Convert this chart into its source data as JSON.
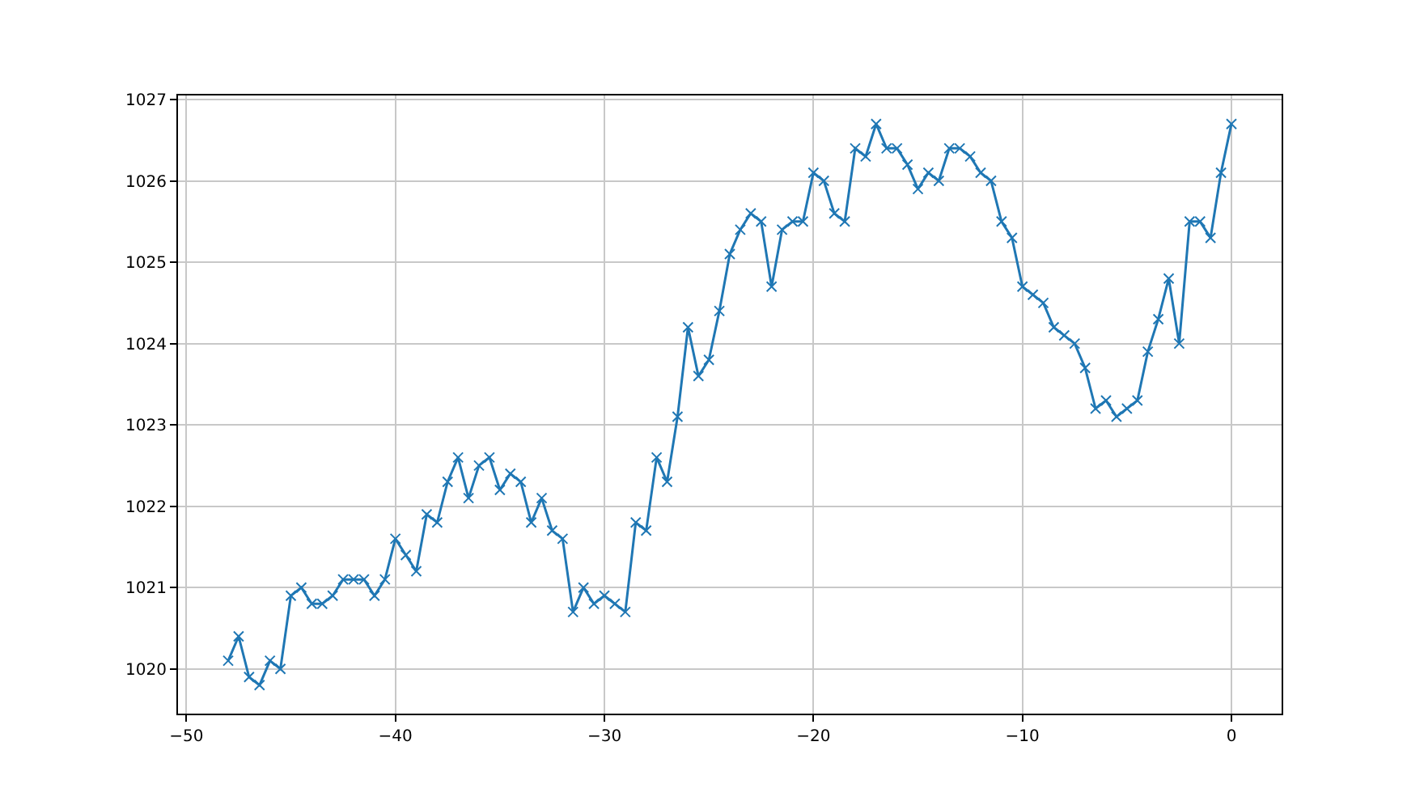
{
  "chart_data": {
    "type": "line",
    "x": [
      -48,
      -47.5,
      -47,
      -46.5,
      -46,
      -45.5,
      -45,
      -44.5,
      -44,
      -43.5,
      -43,
      -42.5,
      -42,
      -41.5,
      -41,
      -40.5,
      -40,
      -39.5,
      -39,
      -38.5,
      -38,
      -37.5,
      -37,
      -36.5,
      -36,
      -35.5,
      -35,
      -34.5,
      -34,
      -33.5,
      -33,
      -32.5,
      -32,
      -31.5,
      -31,
      -30.5,
      -30,
      -29.5,
      -29,
      -28.5,
      -28,
      -27.5,
      -27,
      -26.5,
      -26,
      -25.5,
      -25,
      -24.5,
      -24,
      -23.5,
      -23,
      -22.5,
      -22,
      -21.5,
      -21,
      -20.5,
      -20,
      -19.5,
      -19,
      -18.5,
      -18,
      -17.5,
      -17,
      -16.5,
      -16,
      -15.5,
      -15,
      -14.5,
      -14,
      -13.5,
      -13,
      -12.5,
      -12,
      -11.5,
      -11,
      -10.5,
      -10,
      -9.5,
      -9,
      -8.5,
      -8,
      -7.5,
      -7,
      -6.5,
      -6,
      -5.5,
      -5,
      -4.5,
      -4,
      -3.5,
      -3,
      -2.5,
      -2,
      -1.5,
      -1,
      -0.5,
      0
    ],
    "series": [
      {
        "color": "#1f77b4",
        "values": [
          1020.1,
          1020.4,
          1019.9,
          1019.8,
          1020.1,
          1020.0,
          1020.9,
          1021.0,
          1020.8,
          1020.8,
          1020.9,
          1021.1,
          1021.1,
          1021.1,
          1020.9,
          1021.1,
          1021.6,
          1021.4,
          1021.2,
          1021.9,
          1021.8,
          1022.3,
          1022.6,
          1022.1,
          1022.5,
          1022.6,
          1022.2,
          1022.4,
          1022.3,
          1021.8,
          1022.1,
          1021.7,
          1021.6,
          1020.7,
          1021.0,
          1020.8,
          1020.9,
          1020.8,
          1020.7,
          1021.8,
          1021.7,
          1022.6,
          1022.3,
          1023.1,
          1024.2,
          1023.6,
          1023.8,
          1024.4,
          1025.1,
          1025.4,
          1025.6,
          1025.5,
          1024.7,
          1025.4,
          1025.5,
          1025.5,
          1026.1,
          1026.0,
          1025.6,
          1025.5,
          1026.4,
          1026.3,
          1026.7,
          1026.4,
          1026.4,
          1026.2,
          1025.9,
          1026.1,
          1026.0,
          1026.4,
          1026.4,
          1026.3,
          1026.1,
          1026.0,
          1025.5,
          1025.3,
          1024.7,
          1024.6,
          1024.5,
          1024.2,
          1024.1,
          1024.0,
          1023.7,
          1023.2,
          1023.3,
          1023.1,
          1023.2,
          1023.3,
          1023.9,
          1024.3,
          1024.8,
          1024.0,
          1025.5,
          1025.5,
          1025.3,
          1026.1,
          1026.7
        ]
      }
    ],
    "xlim": [
      -50.4,
      2.4
    ],
    "ylim": [
      1019.45,
      1027.05
    ],
    "xticks": [
      {
        "value": -50,
        "label": "−50"
      },
      {
        "value": -40,
        "label": "−40"
      },
      {
        "value": -30,
        "label": "−30"
      },
      {
        "value": -20,
        "label": "−20"
      },
      {
        "value": -10,
        "label": "−10"
      },
      0
    ],
    "yticks": [
      1020,
      1021,
      1022,
      1023,
      1024,
      1025,
      1026,
      1027
    ],
    "grid": true,
    "marker": "cross",
    "line_style": "solid"
  }
}
